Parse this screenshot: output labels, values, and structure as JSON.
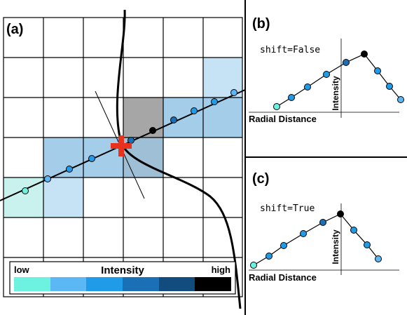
{
  "panels": {
    "a": {
      "label": "(a)"
    },
    "b": {
      "label": "(b)",
      "code": "shift=False",
      "xlabel": "Radial Distance",
      "ylabel": "Intensity"
    },
    "c": {
      "label": "(c)",
      "code": "shift=True",
      "xlabel": "Radial Distance",
      "ylabel": "Intensity"
    }
  },
  "colorbar": {
    "title": "Intensity",
    "low": "low",
    "high": "high",
    "colors": [
      "#6ef2e0",
      "#5bb8f5",
      "#1f9be8",
      "#1a6fb5",
      "#124b7d",
      "#000000"
    ]
  },
  "grid_highlight_colors": {
    "light": "#c6e2f5",
    "medium": "#a4cde9",
    "dark": "#9fbfd6",
    "teal": "#c9f1ee",
    "peak": "#a6a6a6"
  },
  "colors": {
    "marker": "#e8321e",
    "points": [
      "#6ef2e0",
      "#5bb8f5",
      "#1f9be8",
      "#1a6fb5",
      "#124b7d",
      "#000000"
    ]
  }
}
